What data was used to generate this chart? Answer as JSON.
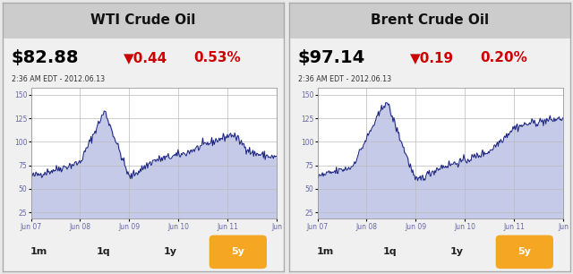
{
  "panels": [
    {
      "title": "WTI Crude Oil",
      "price": "$82.88",
      "change": "▼0.44",
      "change_pct": "0.53%",
      "timestamp": "2:36 AM EDT - 2012.06.13",
      "yticks": [
        25,
        50,
        75,
        100,
        125,
        150
      ],
      "ylim": [
        18,
        158
      ],
      "xtick_labels": [
        "Jun 07",
        "Jun 08",
        "Jun 09",
        "Jun 10",
        "Jun 11",
        "Jun"
      ],
      "buttons": [
        "1m",
        "1q",
        "1y",
        "5y"
      ],
      "active_button": "5y"
    },
    {
      "title": "Brent Crude Oil",
      "price": "$97.14",
      "change": "▼0.19",
      "change_pct": "0.20%",
      "timestamp": "2:36 AM EDT - 2012.06.13",
      "yticks": [
        25,
        50,
        75,
        100,
        125,
        150
      ],
      "ylim": [
        18,
        158
      ],
      "xtick_labels": [
        "Jun 07",
        "Jun 08",
        "Jun 09",
        "Jun 10",
        "Jun 11",
        "Jun"
      ],
      "buttons": [
        "1m",
        "1q",
        "1y",
        "5y"
      ],
      "active_button": "5y"
    }
  ],
  "bg_color": "#e8e8e8",
  "panel_bg": "#f0f0f0",
  "title_bg": "#cccccc",
  "chart_bg": "#ffffff",
  "line_color": "#1a237e",
  "fill_color": "#c5cae9",
  "fill_alpha": 1.0,
  "grid_color": "#bbbbbb",
  "tick_color": "#6666aa",
  "price_color": "#000000",
  "change_color": "#cc0000",
  "timestamp_color": "#333333",
  "button_color": "#222222",
  "active_button_bg": "#f5a623",
  "active_button_fg": "#ffffff",
  "border_color": "#aaaaaa"
}
